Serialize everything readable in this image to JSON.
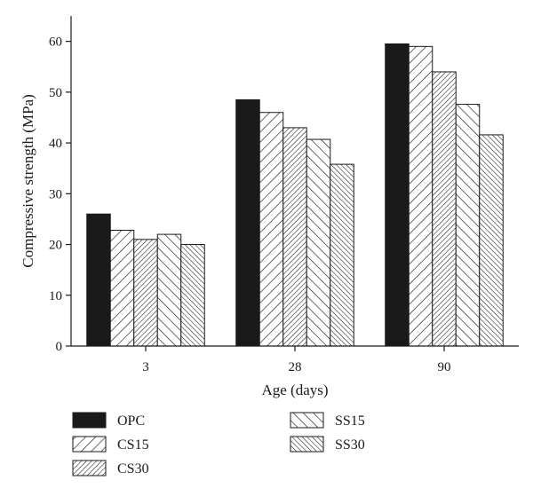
{
  "chart_data": {
    "type": "bar",
    "title": "",
    "xlabel": "Age (days)",
    "ylabel": "Compressive strength (MPa)",
    "categories": [
      "3",
      "28",
      "90"
    ],
    "ylim": [
      0,
      65
    ],
    "yticks": [
      0,
      10,
      20,
      30,
      40,
      50,
      60
    ],
    "grid": false,
    "legend_position": "bottom",
    "series": [
      {
        "name": "OPC",
        "values": [
          26.0,
          48.5,
          59.5
        ],
        "pattern": "solid"
      },
      {
        "name": "CS15",
        "values": [
          22.8,
          46.0,
          59.0
        ],
        "pattern": "hatch-forward-wide"
      },
      {
        "name": "CS30",
        "values": [
          21.0,
          43.0,
          54.0
        ],
        "pattern": "hatch-forward-dense"
      },
      {
        "name": "SS15",
        "values": [
          22.0,
          40.7,
          47.6
        ],
        "pattern": "hatch-back-wide"
      },
      {
        "name": "SS30",
        "values": [
          20.0,
          35.8,
          41.6
        ],
        "pattern": "hatch-back-dense"
      }
    ],
    "colors": {
      "bar_stroke": "#1a1a1a",
      "solid_fill": "#1a1a1a",
      "background": "#ffffff"
    }
  }
}
